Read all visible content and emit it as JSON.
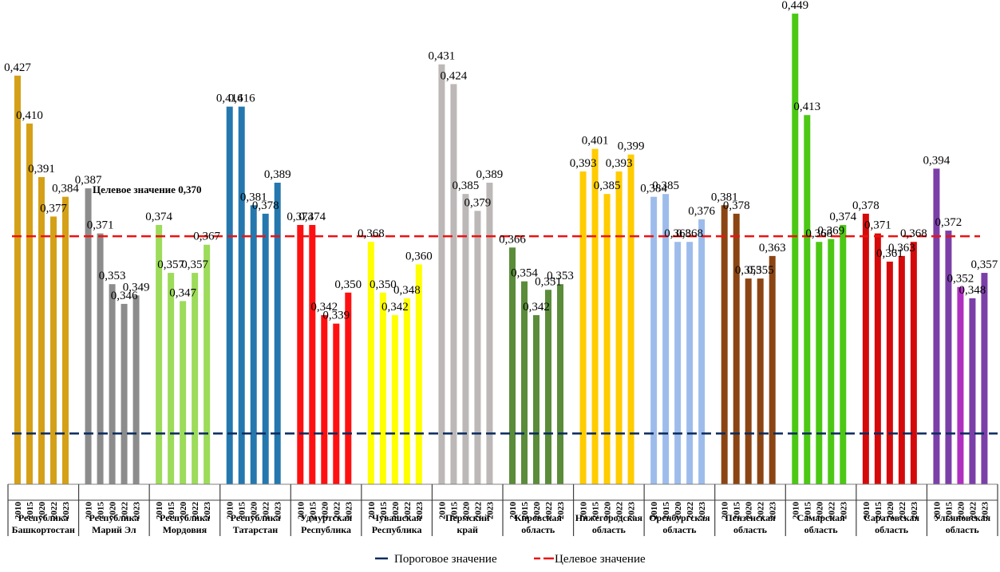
{
  "chart_data": {
    "type": "bar",
    "title": "",
    "xlabel": "",
    "ylabel": "",
    "ylim": [
      0.282,
      0.451
    ],
    "grid": false,
    "years": [
      "2010",
      "2015",
      "2020",
      "2022",
      "2023"
    ],
    "categories": [
      {
        "name": [
          "Республика",
          "Башкортостан"
        ],
        "color": "#D4A017",
        "values": [
          0.427,
          0.41,
          0.391,
          0.377,
          0.384
        ],
        "labels": [
          "0,427",
          "0,410",
          "0,391",
          "0,377",
          "0,384"
        ]
      },
      {
        "name": [
          "Республика",
          "Марий Эл"
        ],
        "color": "#8C8C8C",
        "values": [
          0.387,
          0.371,
          0.353,
          0.346,
          0.349
        ],
        "labels": [
          "0,387",
          "0,371",
          "0,353",
          "0,346",
          "0,349"
        ]
      },
      {
        "name": [
          "Республика",
          "Мордовия"
        ],
        "color": "#9DDB5A",
        "values": [
          0.374,
          0.357,
          0.347,
          0.357,
          0.367
        ],
        "labels": [
          "0,374",
          "0,357",
          "0,347",
          "0,357",
          "0,367"
        ]
      },
      {
        "name": [
          "Республика",
          "Татарстан"
        ],
        "color": "#2478AE",
        "values": [
          0.416,
          0.416,
          0.381,
          0.378,
          0.389
        ],
        "labels": [
          "0,416",
          "0,416",
          "0,381",
          "0,378",
          "0,389"
        ]
      },
      {
        "name": [
          "Удмуртская",
          "Республика"
        ],
        "color": "#FF1010",
        "values": [
          0.374,
          0.374,
          0.342,
          0.339,
          0.35
        ],
        "labels": [
          "0,374",
          "0,374",
          "0,342",
          "0,339",
          "0,350"
        ]
      },
      {
        "name": [
          "Чувашская",
          "Республика"
        ],
        "color": "#FFFF00",
        "values": [
          0.368,
          0.35,
          0.342,
          0.348,
          0.36
        ],
        "labels": [
          "0,368",
          "0,350",
          "0,342",
          "0,348",
          "0,360"
        ]
      },
      {
        "name": [
          "Пермский",
          "край"
        ],
        "color": "#BDB8B8",
        "values": [
          0.431,
          0.424,
          0.385,
          0.379,
          0.389
        ],
        "labels": [
          "0,431",
          "0,424",
          "0,385",
          "0,379",
          "0,389"
        ]
      },
      {
        "name": [
          "Кировская",
          "область"
        ],
        "color": "#5A8C3A",
        "values": [
          0.366,
          0.354,
          0.342,
          0.351,
          0.353
        ],
        "labels": [
          "0,366",
          "0,354",
          "0,342",
          "0,351",
          "0,353"
        ]
      },
      {
        "name": [
          "Нижегородская",
          "область"
        ],
        "color": "#FFCC00",
        "values": [
          0.393,
          0.401,
          0.385,
          0.393,
          0.399
        ],
        "labels": [
          "0,393",
          "0,401",
          "0,385",
          "0,393",
          "0,399"
        ]
      },
      {
        "name": [
          "Оренбургская",
          "область"
        ],
        "color": "#9DBCEB",
        "values": [
          0.384,
          0.385,
          0.368,
          0.368,
          0.376
        ],
        "labels": [
          "0,384",
          "0,385",
          "0,368",
          "0,368",
          "0,376"
        ]
      },
      {
        "name": [
          "Пензенская",
          "область"
        ],
        "color": "#8B4513",
        "values": [
          0.381,
          0.378,
          0.355,
          0.355,
          0.363
        ],
        "labels": [
          "0,381",
          "0,378",
          "0,355",
          "0,355",
          "0,363"
        ]
      },
      {
        "name": [
          "Самарская",
          "область"
        ],
        "color": "#4CC814",
        "values": [
          0.449,
          0.413,
          0.368,
          0.369,
          0.374
        ],
        "labels": [
          "0,449",
          "0,413",
          "0,368",
          "0,369",
          "0,374"
        ]
      },
      {
        "name": [
          "Саратовская",
          "область"
        ],
        "color": "#D40A0A",
        "values": [
          0.378,
          0.371,
          0.361,
          0.363,
          0.368
        ],
        "labels": [
          "0,378",
          "0,371",
          "0,361",
          "0,363",
          "0,368"
        ]
      },
      {
        "name": [
          "Ульяновская",
          "область"
        ],
        "color": "#7B3FA8",
        "values": [
          0.394,
          0.372,
          0.352,
          0.348,
          0.357
        ],
        "labels": [
          "0,394",
          "0,372",
          "0,352",
          "0,348",
          "0,357"
        ],
        "bar_colors": [
          "#7B3FA8",
          "#7B3FA8",
          "#B02FC0",
          "#7B3FA8",
          "#7B3FA8"
        ]
      }
    ],
    "reference_lines": [
      {
        "name": "Пороговое значение",
        "value": 0.3,
        "color": "#0A2A5E",
        "style": "dashed"
      },
      {
        "name": "Целевое значение",
        "value": 0.37,
        "color": "#EE1111",
        "style": "dashed"
      }
    ],
    "annotation": "Целевое значение 0,370",
    "legend": {
      "position": "bottom-center",
      "entries": [
        "Пороговое значение",
        "Целевое значение"
      ]
    }
  }
}
